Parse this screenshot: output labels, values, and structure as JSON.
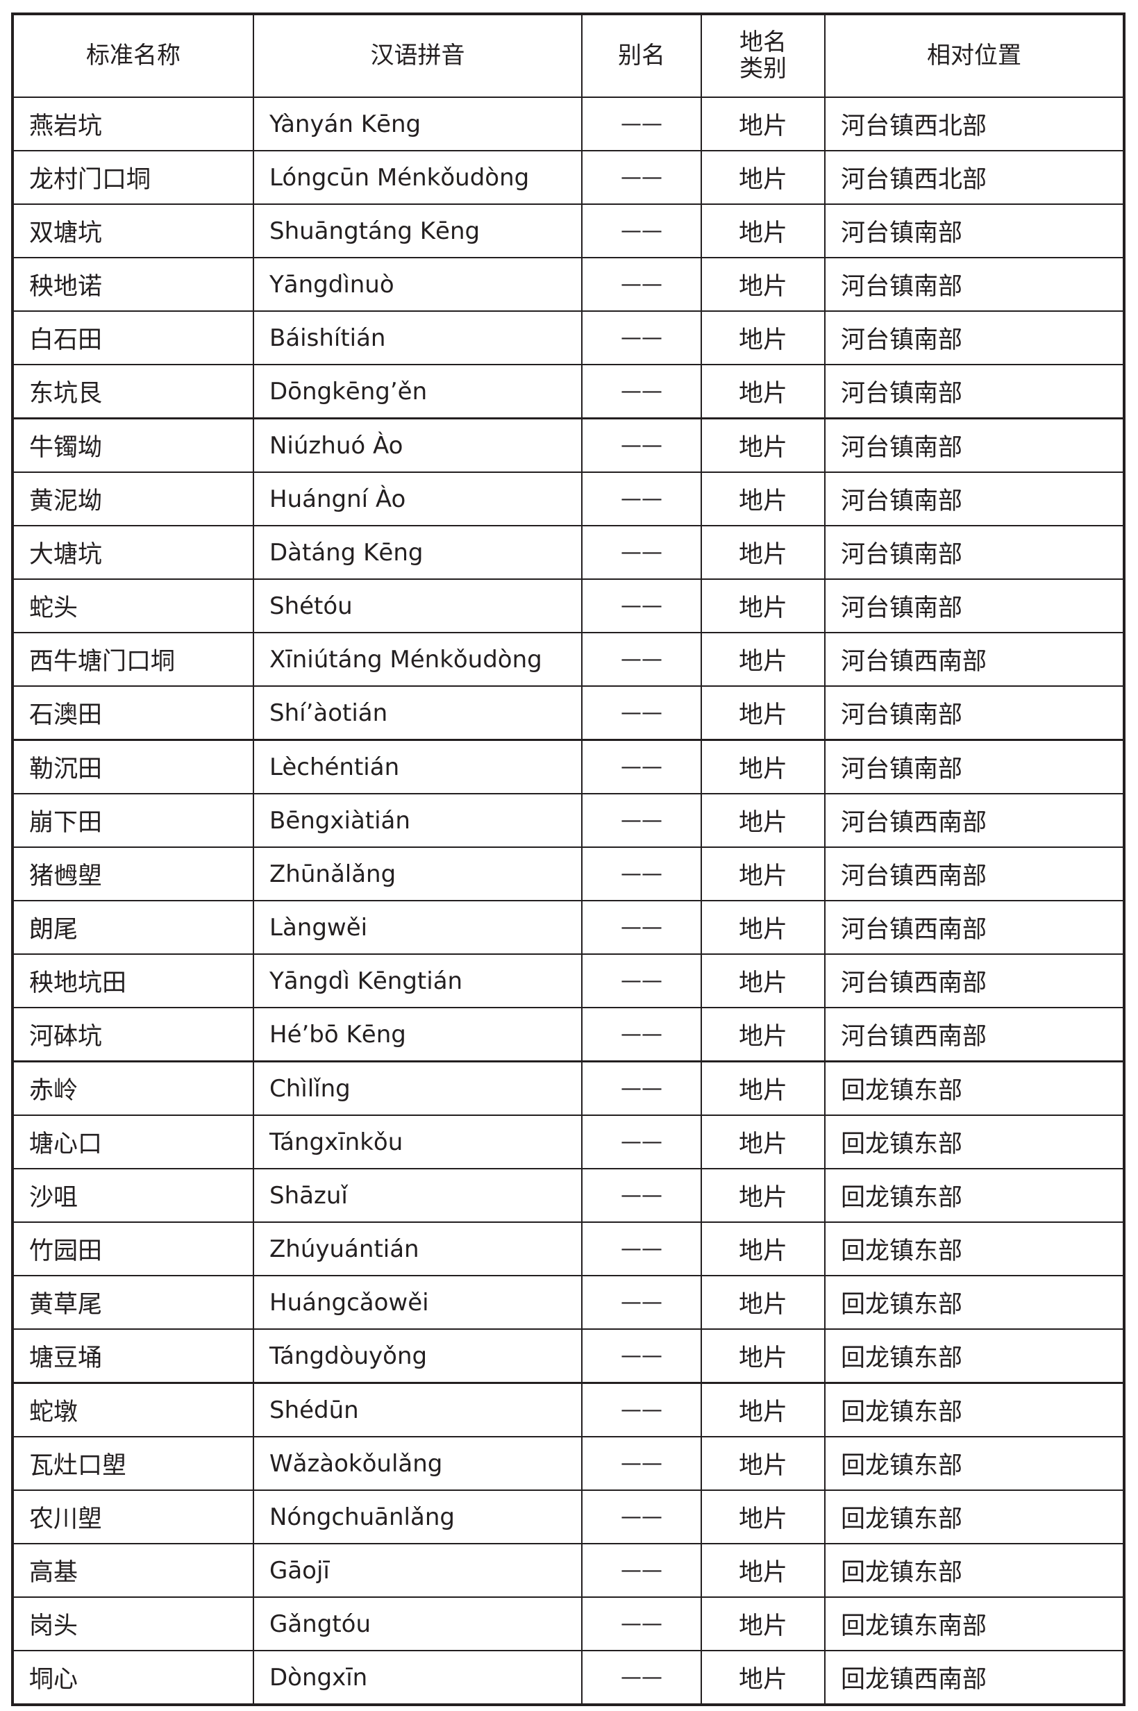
{
  "headers": {
    "name": "标准名称",
    "pinyin": "汉语拼音",
    "alias": "别名",
    "type_line1": "地名",
    "type_line2": "类别",
    "location": "相对位置"
  },
  "rows": [
    {
      "name": "燕岩坑",
      "pinyin": "Yànyán Kēng",
      "alias": "——",
      "type": "地片",
      "location": "河台镇西北部"
    },
    {
      "name": "龙村门口垌",
      "pinyin": "Lóngcūn Ménkǒudòng",
      "alias": "——",
      "type": "地片",
      "location": "河台镇西北部"
    },
    {
      "name": "双塘坑",
      "pinyin": "Shuāngtáng Kēng",
      "alias": "——",
      "type": "地片",
      "location": "河台镇南部"
    },
    {
      "name": "秧地诺",
      "pinyin": "Yāngdìnuò",
      "alias": "——",
      "type": "地片",
      "location": "河台镇南部"
    },
    {
      "name": "白石田",
      "pinyin": "Báishítián",
      "alias": "——",
      "type": "地片",
      "location": "河台镇南部"
    },
    {
      "name": "东坑艮",
      "pinyin": "Dōngkēng’ěn",
      "alias": "——",
      "type": "地片",
      "location": "河台镇南部"
    },
    {
      "name": "牛镯坳",
      "pinyin": "Niúzhuó Ào",
      "alias": "——",
      "type": "地片",
      "location": "河台镇南部"
    },
    {
      "name": "黄泥坳",
      "pinyin": "Huángní Ào",
      "alias": "——",
      "type": "地片",
      "location": "河台镇南部"
    },
    {
      "name": "大塘坑",
      "pinyin": "Dàtáng Kēng",
      "alias": "——",
      "type": "地片",
      "location": "河台镇南部"
    },
    {
      "name": "蛇头",
      "pinyin": "Shétóu",
      "alias": "——",
      "type": "地片",
      "location": "河台镇南部"
    },
    {
      "name": "西牛塘门口垌",
      "pinyin": "Xīniútáng Ménkǒudòng",
      "alias": "——",
      "type": "地片",
      "location": "河台镇西南部"
    },
    {
      "name": "石澳田",
      "pinyin": "Shí’àotián",
      "alias": "——",
      "type": "地片",
      "location": "河台镇南部"
    },
    {
      "name": "勒沉田",
      "pinyin": "Lèchéntián",
      "alias": "——",
      "type": "地片",
      "location": "河台镇南部"
    },
    {
      "name": "崩下田",
      "pinyin": "Bēngxiàtián",
      "alias": "——",
      "type": "地片",
      "location": "河台镇西南部"
    },
    {
      "name": "猪乸塱",
      "pinyin": "Zhūnǎlǎng",
      "alias": "——",
      "type": "地片",
      "location": "河台镇西南部"
    },
    {
      "name": "朗尾",
      "pinyin": "Làngwěi",
      "alias": "——",
      "type": "地片",
      "location": "河台镇西南部"
    },
    {
      "name": "秧地坑田",
      "pinyin": "Yāngdì Kēngtián",
      "alias": "——",
      "type": "地片",
      "location": "河台镇西南部"
    },
    {
      "name": "河砵坑",
      "pinyin": "Hé’bō Kēng",
      "alias": "——",
      "type": "地片",
      "location": "河台镇西南部"
    },
    {
      "name": "赤岭",
      "pinyin": "Chìlǐng",
      "alias": "——",
      "type": "地片",
      "location": "回龙镇东部"
    },
    {
      "name": "塘心口",
      "pinyin": "Tángxīnkǒu",
      "alias": "——",
      "type": "地片",
      "location": "回龙镇东部"
    },
    {
      "name": "沙咀",
      "pinyin": "Shāzuǐ",
      "alias": "——",
      "type": "地片",
      "location": "回龙镇东部"
    },
    {
      "name": "竹园田",
      "pinyin": "Zhúyuántián",
      "alias": "——",
      "type": "地片",
      "location": "回龙镇东部"
    },
    {
      "name": "黄草尾",
      "pinyin": "Huángcǎowěi",
      "alias": "——",
      "type": "地片",
      "location": "回龙镇东部"
    },
    {
      "name": "塘豆埇",
      "pinyin": "Tángdòuyǒng",
      "alias": "——",
      "type": "地片",
      "location": "回龙镇东部"
    },
    {
      "name": "蛇墩",
      "pinyin": "Shédūn",
      "alias": "——",
      "type": "地片",
      "location": "回龙镇东部"
    },
    {
      "name": "瓦灶口塱",
      "pinyin": "Wǎzàokǒulǎng",
      "alias": "——",
      "type": "地片",
      "location": "回龙镇东部"
    },
    {
      "name": "农川塱",
      "pinyin": "Nóngchuānlǎng",
      "alias": "——",
      "type": "地片",
      "location": "回龙镇东部"
    },
    {
      "name": "高基",
      "pinyin": "Gāojī",
      "alias": "——",
      "type": "地片",
      "location": "回龙镇东部"
    },
    {
      "name": "岗头",
      "pinyin": "Gǎngtóu",
      "alias": "——",
      "type": "地片",
      "location": "回龙镇东南部"
    },
    {
      "name": "垌心",
      "pinyin": "Dòngxīn",
      "alias": "——",
      "type": "地片",
      "location": "回龙镇西南部"
    }
  ]
}
